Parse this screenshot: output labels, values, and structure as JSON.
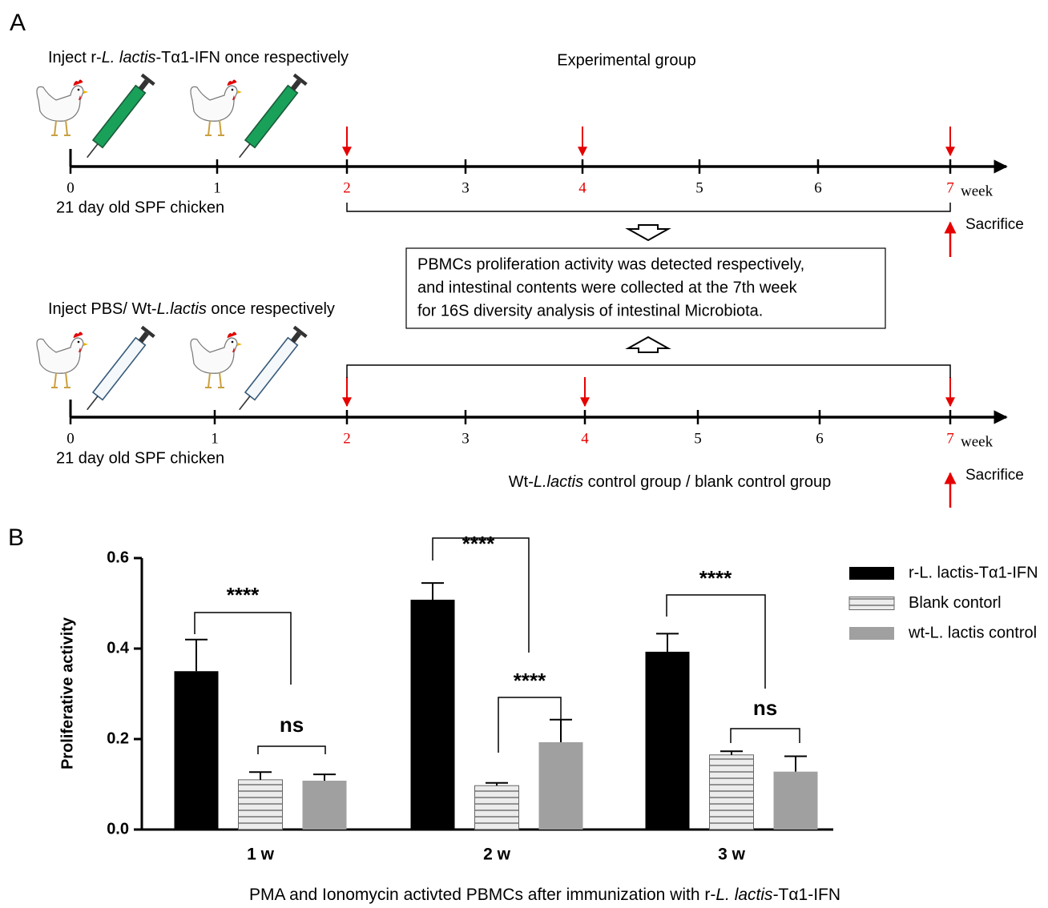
{
  "panel_a": {
    "label": "A",
    "top": {
      "inject": [
        "Inject r-",
        "L. lactis",
        "-Tα1-IFN once respectively"
      ],
      "group": "Experimental group",
      "ticks": [
        "0",
        "1",
        "2",
        "3",
        "4",
        "5",
        "6",
        "7"
      ],
      "unit": "week",
      "start": "21 day old SPF chicken",
      "sacrifice": "Sacrifice"
    },
    "box": [
      "PBMCs proliferation activity was detected respectively,",
      "and intestinal contents were collected at the 7th week",
      "for 16S diversity analysis of intestinal Microbiota."
    ],
    "bottom": {
      "inject": [
        "Inject PBS/ Wt-",
        "L.lactis",
        " once respectively"
      ],
      "group": [
        "Wt-",
        "L.lactis",
        " control group / blank control group"
      ],
      "ticks": [
        "0",
        "1",
        "2",
        "3",
        "4",
        "5",
        "6",
        "7"
      ],
      "unit": "week",
      "start": "21 day old SPF chicken",
      "sacrifice": "Sacrifice"
    }
  },
  "panel_b_label": "B",
  "chart_data": {
    "type": "bar",
    "ylabel": "Proliferative activity",
    "caption": [
      "PMA and Ionomycin activted PBMCs after immunization with r-",
      "L. lactis",
      "-Tα1-IFN"
    ],
    "categories": [
      "1 w",
      "2 w",
      "3 w"
    ],
    "series": [
      {
        "name": "r-L. lactis-Tα1-IFN",
        "color": "#000000",
        "values": [
          0.35,
          0.508,
          0.393
        ],
        "errors": [
          0.07,
          0.037,
          0.04
        ]
      },
      {
        "name": "Blank contorl",
        "color": "#e8e8e8",
        "hatch": true,
        "values": [
          0.11,
          0.097,
          0.165
        ],
        "errors": [
          0.017,
          0.006,
          0.008
        ]
      },
      {
        "name": "wt-L. lactis control",
        "color": "#a0a0a0",
        "values": [
          0.108,
          0.193,
          0.128
        ],
        "errors": [
          0.014,
          0.05,
          0.034
        ]
      }
    ],
    "annotations": [
      "****",
      "ns",
      "****",
      "****",
      "****",
      "ns"
    ],
    "ylim": [
      0,
      0.6
    ],
    "yticks": [
      {
        "value": 0,
        "label": "0.0"
      },
      0.2,
      0.4,
      0.6
    ]
  }
}
